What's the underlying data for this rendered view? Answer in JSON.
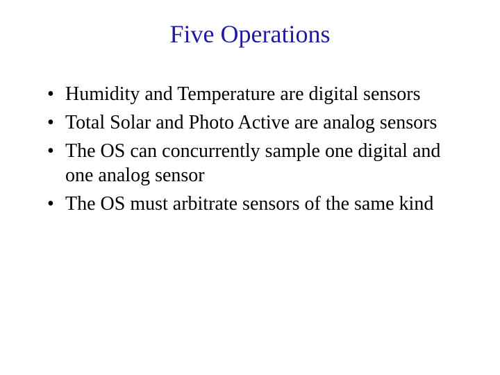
{
  "title": {
    "text": "Five Operations",
    "color": "#1f1aa3",
    "fontsize": 36
  },
  "bullets": {
    "items": [
      "Humidity and Temperature are digital sensors",
      "Total Solar and Photo Active are analog sensors",
      "The OS can concurrently sample one digital and one analog sensor",
      "The OS must arbitrate sensors of the same kind"
    ],
    "fontsize": 28,
    "color": "#000000"
  },
  "background_color": "#ffffff"
}
